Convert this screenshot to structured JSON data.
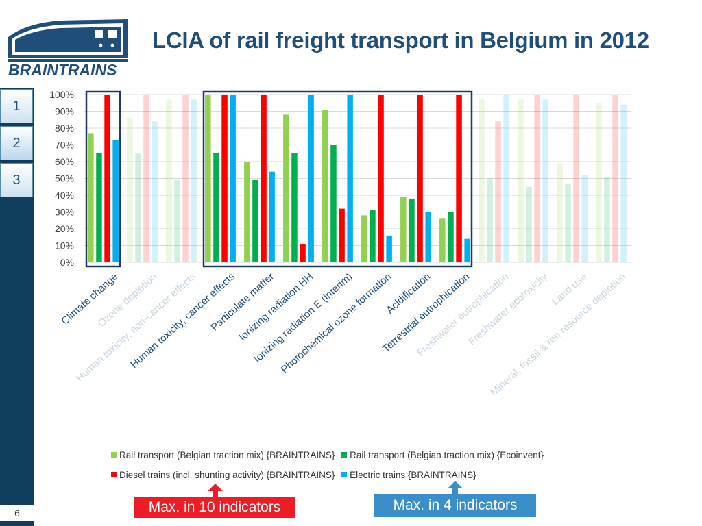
{
  "header": {
    "title": "LCIA of rail freight transport in Belgium in 2012",
    "logo_text": "BRAINTRAINS"
  },
  "sidebar": {
    "tabs": [
      {
        "label": "1"
      },
      {
        "label": "2"
      },
      {
        "label": "3"
      }
    ],
    "page_number": "6"
  },
  "chart_data": {
    "type": "bar",
    "title": "",
    "xlabel": "",
    "ylabel": "",
    "ylim": [
      0,
      100
    ],
    "y_ticks": [
      "0%",
      "10%",
      "20%",
      "30%",
      "40%",
      "50%",
      "60%",
      "70%",
      "80%",
      "90%",
      "100%"
    ],
    "grid": true,
    "categories": [
      "Climate change",
      "Ozone depletion",
      "Human toxicity, non-cancer effects",
      "Human toxicity, cancer effects",
      "Particulate matter",
      "Ionizing radiation HH",
      "Ionizing radiation E (interim)",
      "Photochemical ozone formation",
      "Acidification",
      "Terrestrial eutrophication",
      "Freshwater eutrophication",
      "Freshwater ecotoxicity",
      "Land use",
      "Mineral, fossil & ren resource depletion"
    ],
    "series": [
      {
        "name": "Rail transport (Belgian traction mix) {BRAINTRAINS}",
        "color": "#92d050",
        "values": [
          77,
          86,
          97,
          100,
          60,
          88,
          91,
          28,
          39,
          26,
          97,
          97,
          59,
          95
        ]
      },
      {
        "name": "Rail transport (Belgian traction mix) {Ecoinvent}",
        "color": "#00b050",
        "values": [
          65,
          65,
          49,
          65,
          49,
          65,
          70,
          31,
          38,
          30,
          50,
          45,
          47,
          51
        ]
      },
      {
        "name": "Diesel trains (incl. shunting activity) {BRAINTRAINS}",
        "color": "#ff0000",
        "values": [
          100,
          100,
          100,
          100,
          100,
          11,
          32,
          100,
          100,
          100,
          84,
          100,
          100,
          100
        ]
      },
      {
        "name": "Electric trains {BRAINTRAINS}",
        "color": "#00b0f0",
        "values": [
          73,
          84,
          97,
          100,
          54,
          100,
          100,
          16,
          30,
          14,
          100,
          97,
          52,
          94
        ]
      }
    ],
    "highlighted_categories": [
      "Climate change",
      "Human toxicity, cancer effects",
      "Particulate matter",
      "Ionizing radiation HH",
      "Ionizing radiation E (interim)",
      "Photochemical ozone formation",
      "Acidification",
      "Terrestrial eutrophication"
    ],
    "faded_categories": [
      "Ozone depletion",
      "Human toxicity, non-cancer effects",
      "Freshwater eutrophication",
      "Freshwater ecotoxicity",
      "Land use",
      "Mineral, fossil & ren resource depletion"
    ],
    "legend_position": "bottom"
  },
  "callouts": {
    "red": "Max. in 10 indicators",
    "blue": "Max. in 4 indicators",
    "red_color": "#ee1c24",
    "blue_color": "#3a8fc9"
  }
}
